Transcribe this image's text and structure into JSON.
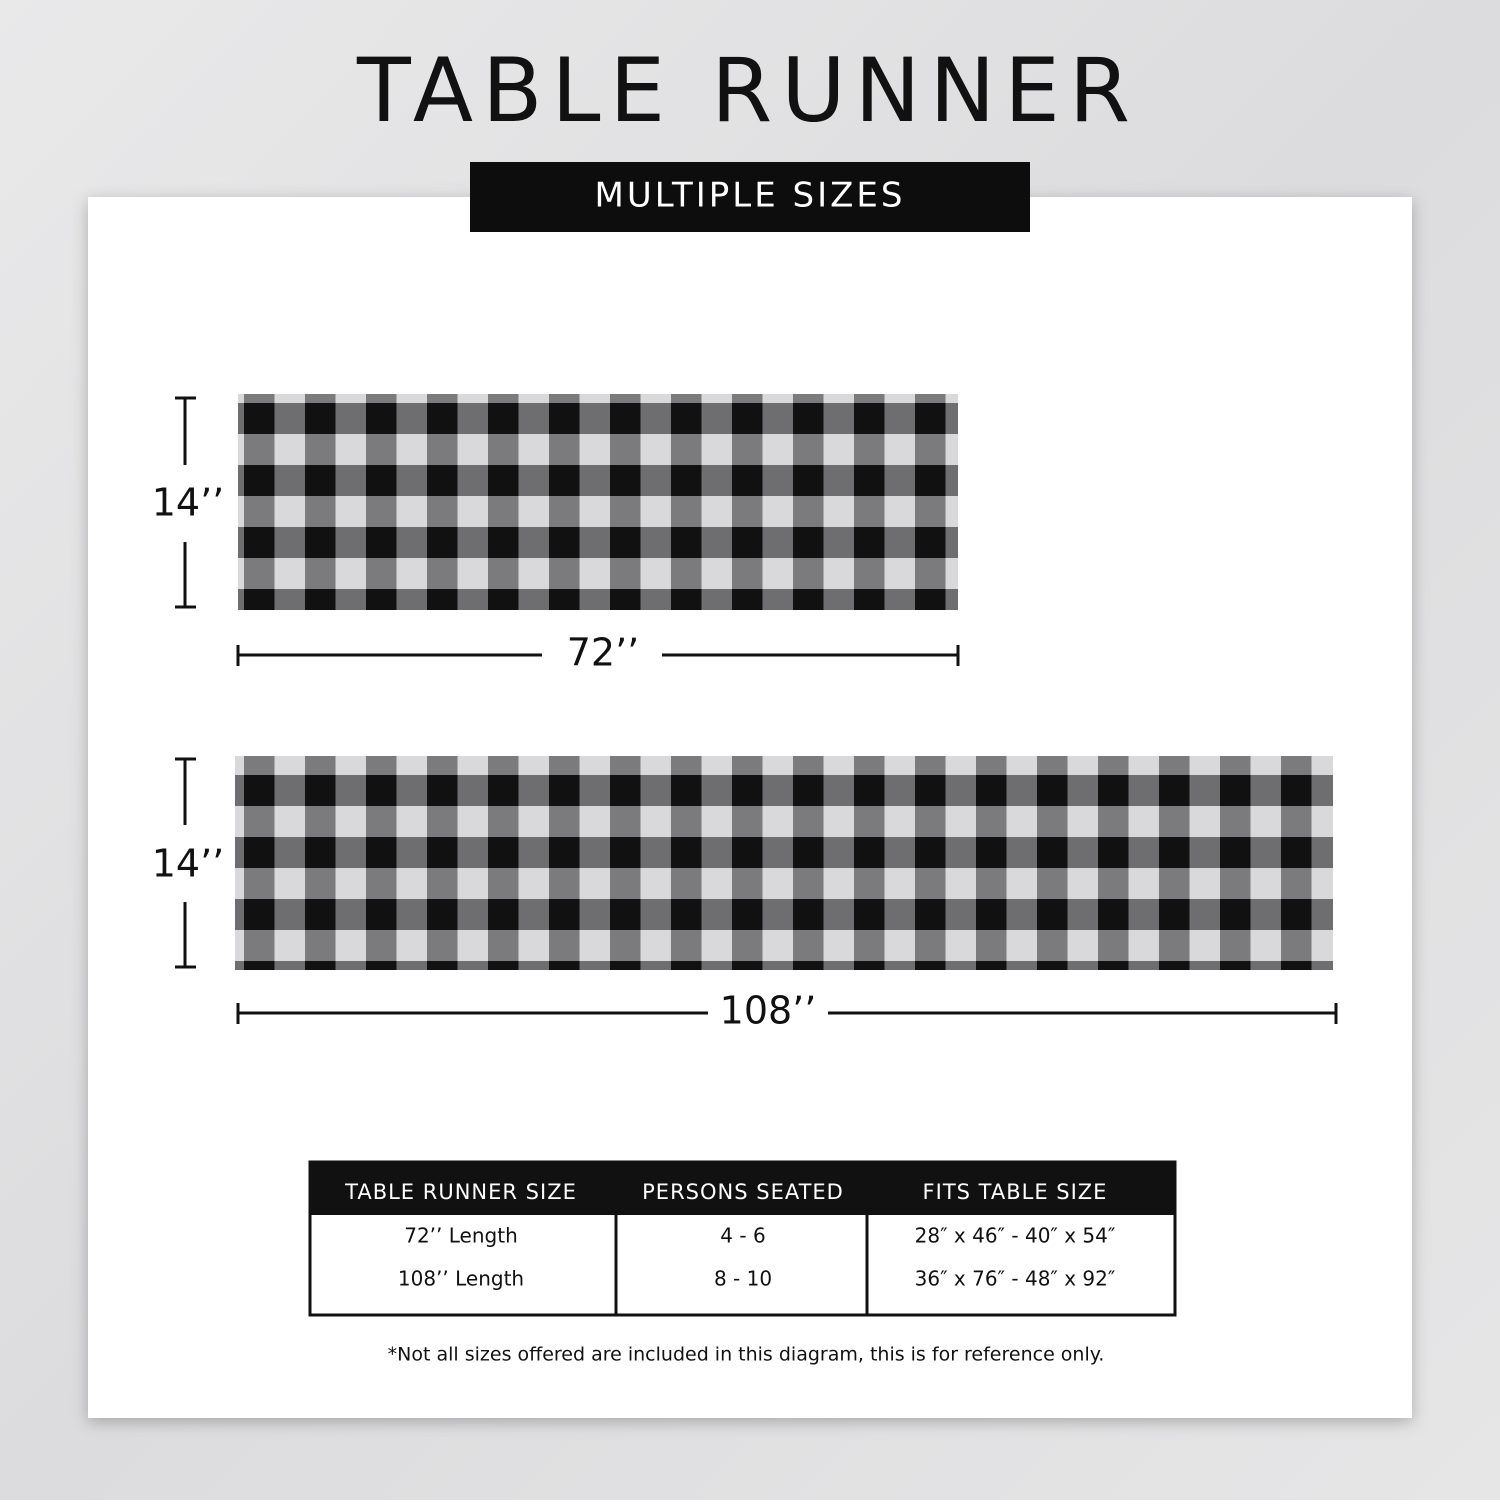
{
  "header": {
    "title": "TABLE RUNNER",
    "subtitle": "MULTIPLE SIZES"
  },
  "runners": [
    {
      "height_label": "14’’",
      "length_label": "72’’"
    },
    {
      "height_label": "14’’",
      "length_label": "108’’"
    }
  ],
  "table": {
    "columns": [
      "TABLE RUNNER SIZE",
      "PERSONS SEATED",
      "FITS TABLE SIZE"
    ],
    "rows": [
      [
        "72’’ Length",
        "4 - 6",
        "28″ x 46″ - 40″ x 54″"
      ],
      [
        "108’’ Length",
        "8 - 10",
        "36″ x 76″ - 48″ x 92″"
      ]
    ]
  },
  "footnote": "*Not all sizes offered are included in this diagram, this is for reference only."
}
